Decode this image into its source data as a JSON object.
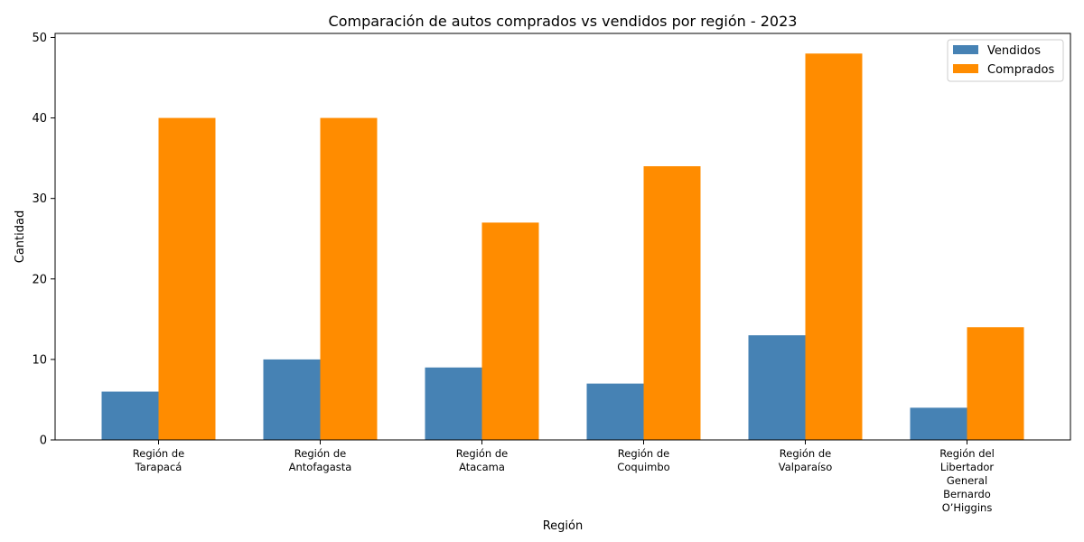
{
  "chart_data": {
    "type": "bar",
    "title": "Comparación de autos comprados vs vendidos por región - 2023",
    "xlabel": "Región",
    "ylabel": "Cantidad",
    "ylim": [
      0,
      50.5
    ],
    "yticks": [
      0,
      10,
      20,
      30,
      40,
      50
    ],
    "categories": [
      [
        "Región de",
        "Tarapacá"
      ],
      [
        "Región de",
        "Antofagasta"
      ],
      [
        "Región de",
        "Atacama"
      ],
      [
        "Región de",
        "Coquimbo"
      ],
      [
        "Región de",
        "Valparaíso"
      ],
      [
        "Región del",
        "Libertador",
        "General",
        "Bernardo",
        "O’Higgins"
      ]
    ],
    "series": [
      {
        "name": "Vendidos",
        "color": "#4682b4",
        "values": [
          6,
          10,
          9,
          7,
          13,
          4
        ]
      },
      {
        "name": "Comprados",
        "color": "#ff8c00",
        "values": [
          40,
          40,
          27,
          34,
          48,
          14
        ]
      }
    ],
    "legend": "top-right",
    "grid": false
  }
}
